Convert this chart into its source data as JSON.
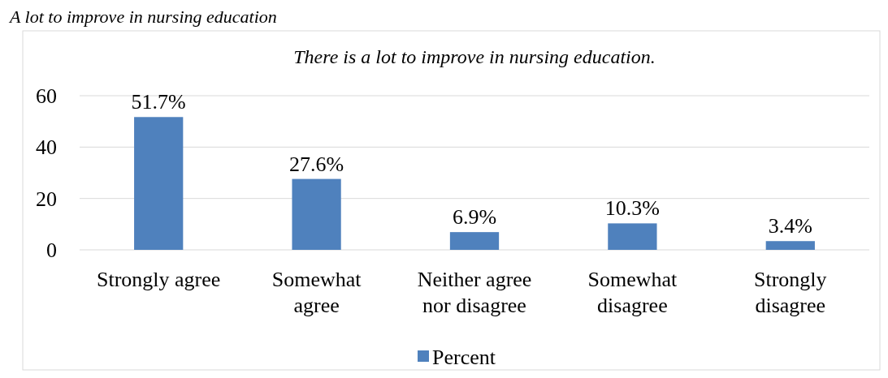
{
  "chart_data": {
    "type": "bar",
    "title": "There is a lot to improve in nursing education.",
    "annotations": [
      "A lot to improve in nursing education"
    ],
    "categories": [
      "Strongly agree",
      "Somewhat agree",
      "Neither agree nor disagree",
      "Somewhat disagree",
      "Strongly disagree"
    ],
    "series": [
      {
        "name": "Percent",
        "color": "#4f81bd",
        "values": [
          51.7,
          27.6,
          6.9,
          10.3,
          3.4
        ]
      }
    ],
    "value_labels": [
      "51.7%",
      "27.6%",
      "6.9%",
      "10.3%",
      "3.4%"
    ],
    "ylim": [
      0,
      60
    ],
    "yticks": [
      0,
      20,
      40,
      60
    ],
    "grid": "y",
    "legend": "bottom"
  }
}
